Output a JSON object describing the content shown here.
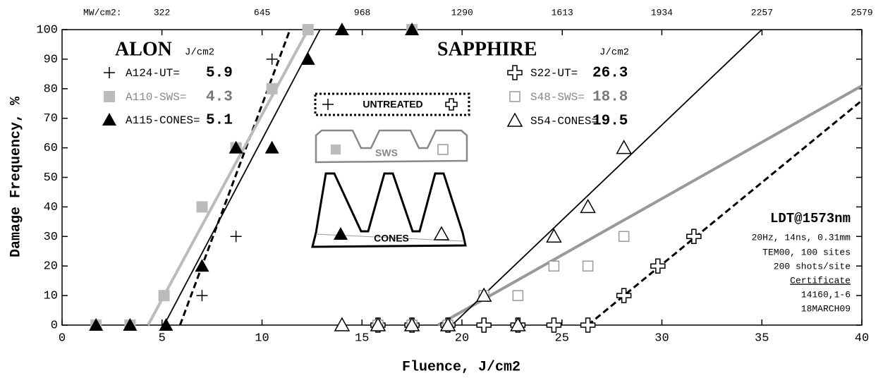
{
  "chart_data": {
    "type": "scatter",
    "xlabel": "Fluence, J/cm2",
    "ylabel": "Damage Frequency, %",
    "xlim": [
      0,
      40
    ],
    "xticks": [
      0,
      5,
      10,
      15,
      20,
      25,
      30,
      35,
      40
    ],
    "ylim": [
      0,
      100
    ],
    "yticks": [
      0,
      10,
      20,
      30,
      40,
      50,
      60,
      70,
      80,
      90,
      100
    ],
    "x2label": "MW/cm2:",
    "x2lim": [
      0,
      2579
    ],
    "x2ticks": [
      322,
      645,
      968,
      1290,
      1613,
      1934,
      2257,
      2579
    ],
    "groups": [
      {
        "title": "ALON",
        "unit": "J/cm2"
      },
      {
        "title": "SAPPHIRE",
        "unit": "J/cm2"
      }
    ],
    "series": [
      {
        "name": "A124-UT=",
        "threshold": 5.9,
        "marker": "plus",
        "color": "#000000",
        "dashed": true,
        "x": [
          7.0,
          8.7,
          10.5
        ],
        "values": [
          10,
          30,
          90
        ],
        "fit_x": [
          5.9,
          11.4
        ],
        "fit_y": [
          0,
          100
        ]
      },
      {
        "name": "A110-SWS=",
        "threshold": 4.3,
        "marker": "square-filled",
        "color": "#bbbbbb",
        "dashed": false,
        "x": [
          1.7,
          3.4,
          5.1,
          7.0,
          8.7,
          10.5,
          12.3,
          17.5
        ],
        "values": [
          0,
          0,
          10,
          40,
          60,
          80,
          100,
          100
        ],
        "fit_x": [
          4.3,
          12.3
        ],
        "fit_y": [
          0,
          100
        ]
      },
      {
        "name": "A115-CONES=",
        "threshold": 5.1,
        "marker": "triangle-filled",
        "color": "#000000",
        "dashed": false,
        "x": [
          1.7,
          3.4,
          5.2,
          7.0,
          8.7,
          10.5,
          12.3,
          14.0,
          17.5
        ],
        "values": [
          0,
          0,
          0,
          20,
          60,
          60,
          90,
          100,
          100
        ],
        "fit_x": [
          5.1,
          12.9
        ],
        "fit_y": [
          0,
          100
        ]
      },
      {
        "name": "S22-UT=",
        "threshold": 26.3,
        "marker": "cross-open",
        "color": "#000000",
        "dashed": true,
        "x": [
          15.8,
          17.5,
          19.3,
          21.1,
          22.8,
          24.6,
          26.3,
          28.1,
          29.8,
          31.6
        ],
        "values": [
          0,
          0,
          0,
          0,
          0,
          0,
          0,
          10,
          20,
          30
        ],
        "fit_x": [
          26.3,
          40
        ],
        "fit_y": [
          0,
          76
        ]
      },
      {
        "name": "S48-SWS=",
        "threshold": 18.8,
        "marker": "square-open",
        "color": "#999999",
        "dashed": false,
        "x": [
          15.8,
          17.5,
          19.3,
          21.1,
          22.8,
          24.6,
          26.3,
          28.1
        ],
        "values": [
          0,
          0,
          0,
          10,
          10,
          20,
          20,
          30
        ],
        "fit_x": [
          18.8,
          40
        ],
        "fit_y": [
          0,
          81
        ]
      },
      {
        "name": "S54-CONES=",
        "threshold": 19.5,
        "marker": "triangle-open",
        "color": "#000000",
        "dashed": false,
        "x": [
          14.0,
          15.8,
          17.5,
          19.3,
          21.1,
          22.8,
          24.6,
          26.3,
          28.1
        ],
        "values": [
          0,
          0,
          0,
          0,
          10,
          0,
          30,
          40,
          60
        ],
        "fit_x": [
          19.5,
          35
        ],
        "fit_y": [
          0,
          100
        ]
      }
    ],
    "inset": {
      "untreated": "UNTREATED",
      "sws": "SWS",
      "cones": "CONES"
    },
    "note": {
      "title": "LDT@1573nm",
      "lines": [
        "20Hz, 14ns, 0.31mm",
        "TEM00, 100 sites",
        "200 shots/site"
      ],
      "certificate": "Certificate",
      "cert_lines": [
        "14160,1-6",
        "18MARCH09"
      ]
    }
  }
}
